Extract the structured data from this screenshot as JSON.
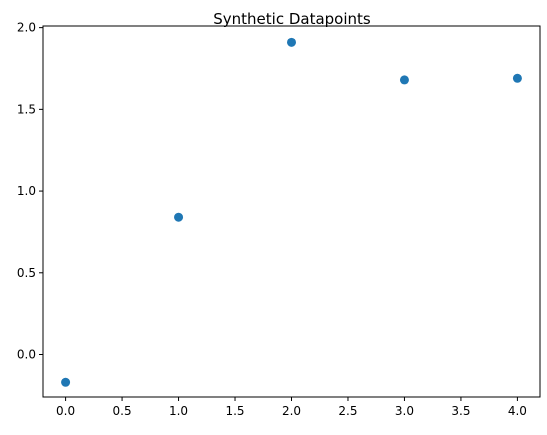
{
  "chart_data": {
    "type": "scatter",
    "title": "Synthetic Datapoints",
    "xlabel": "",
    "ylabel": "",
    "x": [
      0,
      1,
      2,
      3,
      4
    ],
    "y": [
      -0.17,
      0.84,
      1.91,
      1.68,
      1.69
    ],
    "xlim": [
      -0.2,
      4.2
    ],
    "ylim": [
      -0.26,
      2.01
    ],
    "xticks": [
      0.0,
      0.5,
      1.0,
      1.5,
      2.0,
      2.5,
      3.0,
      3.5,
      4.0
    ],
    "xtick_labels": [
      "0.0",
      "0.5",
      "1.0",
      "1.5",
      "2.0",
      "2.5",
      "3.0",
      "3.5",
      "4.0"
    ],
    "yticks": [
      0.0,
      0.5,
      1.0,
      1.5,
      2.0
    ],
    "ytick_labels": [
      "0.0",
      "0.5",
      "1.0",
      "1.5",
      "2.0"
    ],
    "grid": false,
    "point_color": "#1f77b4"
  }
}
